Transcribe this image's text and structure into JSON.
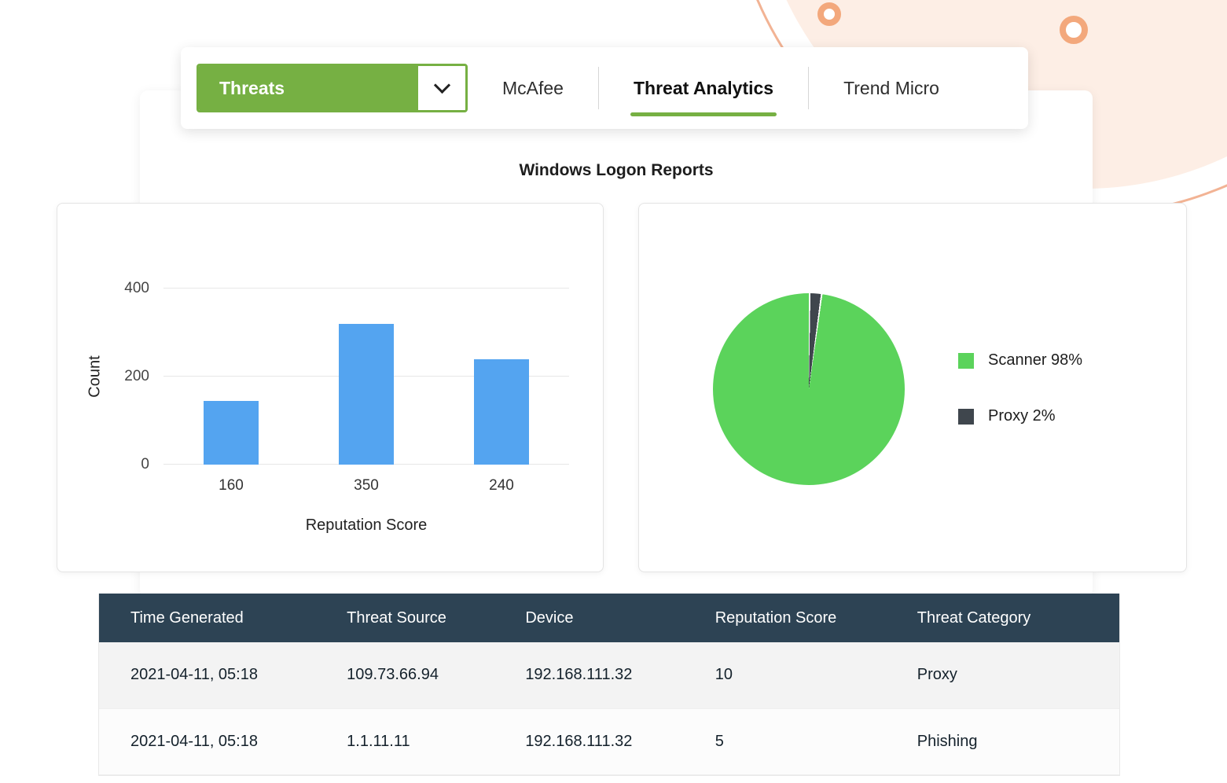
{
  "colors": {
    "accent_green": "#76b043",
    "bar_blue": "#54a4f0",
    "pie_green": "#5bd35b",
    "pie_dark": "#3f464d",
    "table_header_bg": "#2d4354",
    "decor_peach": "#fdeee5"
  },
  "tabbar": {
    "dropdown": {
      "label": "Threats"
    },
    "tabs": [
      {
        "label": "McAfee",
        "active": false
      },
      {
        "label": "Threat Analytics",
        "active": true
      },
      {
        "label": "Trend Micro",
        "active": false
      }
    ]
  },
  "page_title": "Windows Logon Reports",
  "chart_data": [
    {
      "type": "bar",
      "title": "",
      "categories": [
        "160",
        "350",
        "240"
      ],
      "values": [
        145,
        320,
        240
      ],
      "xlabel": "Reputation Score",
      "ylabel": "Count",
      "ylim": [
        0,
        400
      ],
      "yticks": [
        0,
        200,
        400
      ],
      "bar_color": "#54a4f0",
      "grid": true
    },
    {
      "type": "pie",
      "title": "",
      "slices": [
        {
          "label": "Proxy",
          "value": 2,
          "color": "#3f464d"
        },
        {
          "label": "Scanner",
          "value": 98,
          "color": "#5bd35b"
        }
      ],
      "legend": [
        {
          "text": "Scanner 98%",
          "color": "#5bd35b"
        },
        {
          "text": "Proxy 2%",
          "color": "#3f464d"
        }
      ],
      "legend_position": "right",
      "separator_color": "#ffffff"
    }
  ],
  "table": {
    "headers": [
      "Time Generated",
      "Threat Source",
      "Device",
      "Reputation Score",
      "Threat Category"
    ],
    "rows": [
      [
        "2021-04-11, 05:18",
        "109.73.66.94",
        "192.168.111.32",
        "10",
        "Proxy"
      ],
      [
        "2021-04-11, 05:18",
        "1.1.11.11",
        "192.168.111.32",
        "5",
        "Phishing"
      ]
    ]
  }
}
